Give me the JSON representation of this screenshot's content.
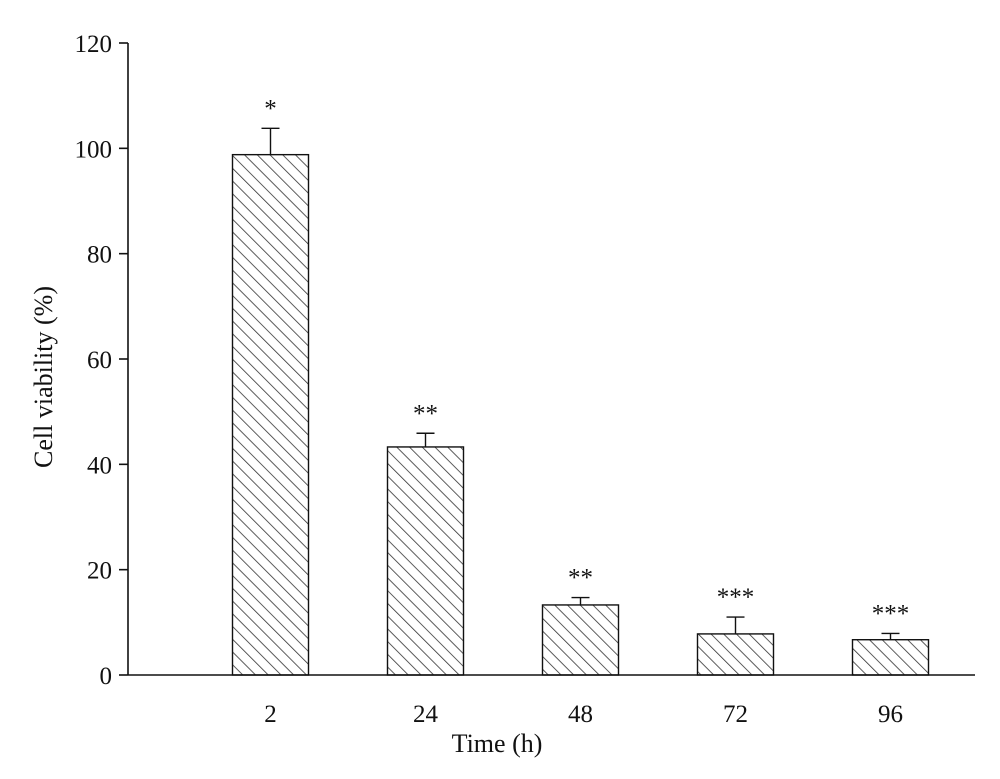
{
  "chart_data": {
    "type": "bar",
    "title": "",
    "xlabel": "Time (h)",
    "ylabel": "Cell viability (%)",
    "categories": [
      "2",
      "24",
      "48",
      "72",
      "96"
    ],
    "values": [
      98.8,
      43.3,
      13.3,
      7.8,
      6.7
    ],
    "error": [
      5.0,
      2.6,
      1.4,
      3.2,
      1.2
    ],
    "significance": [
      "*",
      "**",
      "**",
      "***",
      "***"
    ],
    "ylim": [
      0,
      120
    ],
    "yticks": [
      0,
      20,
      40,
      60,
      80,
      100,
      120
    ],
    "grid": false,
    "bar_fill": "diagonal-hatch",
    "colors": {
      "bar_edge": "#111111",
      "hatch": "#333333",
      "background": "#ffffff"
    }
  }
}
